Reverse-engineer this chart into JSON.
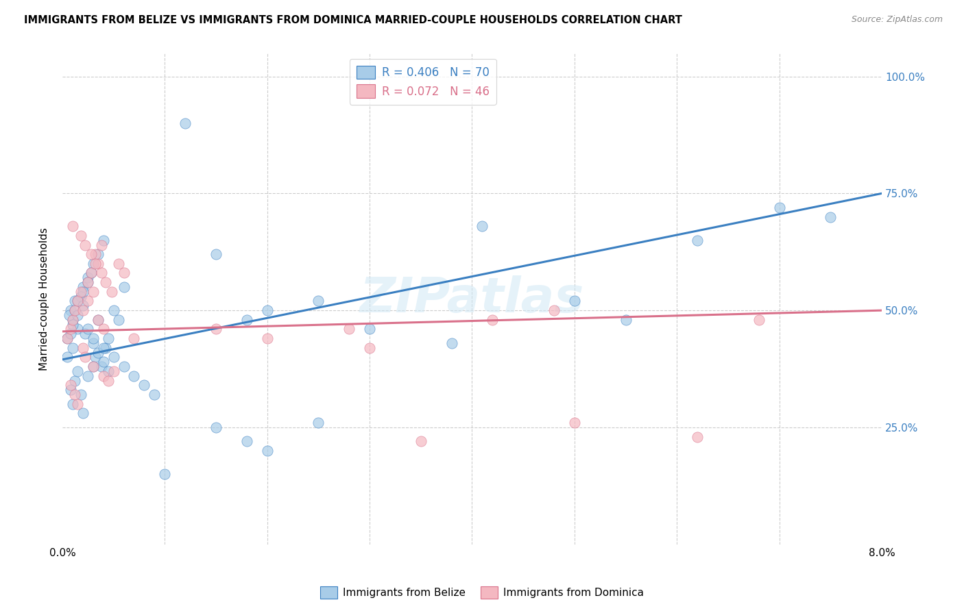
{
  "title": "IMMIGRANTS FROM BELIZE VS IMMIGRANTS FROM DOMINICA MARRIED-COUPLE HOUSEHOLDS CORRELATION CHART",
  "source": "Source: ZipAtlas.com",
  "ylabel": "Married-couple Households",
  "xlim": [
    0.0,
    0.08
  ],
  "ylim": [
    0.0,
    1.05
  ],
  "ytick_values": [
    0.0,
    0.25,
    0.5,
    0.75,
    1.0
  ],
  "ytick_labels": [
    "",
    "25.0%",
    "50.0%",
    "75.0%",
    "100.0%"
  ],
  "xtick_values": [
    0.0,
    0.01,
    0.02,
    0.03,
    0.04,
    0.05,
    0.06,
    0.07,
    0.08
  ],
  "xtick_labels": [
    "0.0%",
    "",
    "",
    "",
    "",
    "",
    "",
    "",
    "8.0%"
  ],
  "belize_color": "#a8cce8",
  "dominica_color": "#f4b8c1",
  "belize_line_color": "#3a7fc1",
  "dominica_line_color": "#d9708a",
  "belize_R": 0.406,
  "belize_N": 70,
  "dominica_R": 0.072,
  "dominica_N": 46,
  "belize_line_x0": 0.0,
  "belize_line_y0": 0.395,
  "belize_line_x1": 0.08,
  "belize_line_y1": 0.75,
  "dominica_line_x0": 0.0,
  "dominica_line_y0": 0.455,
  "dominica_line_x1": 0.08,
  "dominica_line_y1": 0.5,
  "watermark": "ZIPatlas",
  "belize_scatter_x": [
    0.0005,
    0.001,
    0.0008,
    0.0012,
    0.0015,
    0.001,
    0.0007,
    0.002,
    0.0018,
    0.0025,
    0.003,
    0.0022,
    0.0028,
    0.0035,
    0.0032,
    0.004,
    0.0038,
    0.0042,
    0.0045,
    0.005,
    0.0055,
    0.006,
    0.0012,
    0.0015,
    0.0008,
    0.001,
    0.002,
    0.0018,
    0.0025,
    0.003,
    0.0005,
    0.0008,
    0.0012,
    0.0015,
    0.002,
    0.0025,
    0.003,
    0.0035,
    0.004,
    0.0045,
    0.001,
    0.0015,
    0.002,
    0.0025,
    0.003,
    0.0035,
    0.004,
    0.005,
    0.006,
    0.007,
    0.008,
    0.009,
    0.01,
    0.012,
    0.015,
    0.018,
    0.02,
    0.025,
    0.03,
    0.038,
    0.041,
    0.05,
    0.055,
    0.062,
    0.07,
    0.075,
    0.015,
    0.018,
    0.02,
    0.025
  ],
  "belize_scatter_y": [
    0.44,
    0.48,
    0.5,
    0.52,
    0.46,
    0.42,
    0.49,
    0.55,
    0.53,
    0.57,
    0.6,
    0.45,
    0.58,
    0.62,
    0.4,
    0.65,
    0.38,
    0.42,
    0.44,
    0.5,
    0.48,
    0.55,
    0.35,
    0.37,
    0.33,
    0.3,
    0.28,
    0.32,
    0.36,
    0.38,
    0.4,
    0.45,
    0.5,
    0.52,
    0.54,
    0.56,
    0.43,
    0.41,
    0.39,
    0.37,
    0.47,
    0.49,
    0.51,
    0.46,
    0.44,
    0.48,
    0.42,
    0.4,
    0.38,
    0.36,
    0.34,
    0.32,
    0.15,
    0.9,
    0.62,
    0.48,
    0.5,
    0.52,
    0.46,
    0.43,
    0.68,
    0.52,
    0.48,
    0.65,
    0.72,
    0.7,
    0.25,
    0.22,
    0.2,
    0.26
  ],
  "dominica_scatter_x": [
    0.0005,
    0.0008,
    0.001,
    0.0012,
    0.0015,
    0.002,
    0.0018,
    0.0025,
    0.0022,
    0.0028,
    0.003,
    0.0035,
    0.0032,
    0.004,
    0.0038,
    0.0045,
    0.005,
    0.0008,
    0.0012,
    0.0015,
    0.002,
    0.0025,
    0.003,
    0.0035,
    0.004,
    0.001,
    0.0018,
    0.0022,
    0.0028,
    0.0032,
    0.0038,
    0.0042,
    0.0048,
    0.0055,
    0.006,
    0.007,
    0.015,
    0.02,
    0.028,
    0.03,
    0.05,
    0.062,
    0.068,
    0.035,
    0.042,
    0.048
  ],
  "dominica_scatter_y": [
    0.44,
    0.46,
    0.48,
    0.5,
    0.52,
    0.42,
    0.54,
    0.56,
    0.4,
    0.58,
    0.38,
    0.6,
    0.62,
    0.36,
    0.64,
    0.35,
    0.37,
    0.34,
    0.32,
    0.3,
    0.5,
    0.52,
    0.54,
    0.48,
    0.46,
    0.68,
    0.66,
    0.64,
    0.62,
    0.6,
    0.58,
    0.56,
    0.54,
    0.6,
    0.58,
    0.44,
    0.46,
    0.44,
    0.46,
    0.42,
    0.26,
    0.23,
    0.48,
    0.22,
    0.48,
    0.5
  ]
}
